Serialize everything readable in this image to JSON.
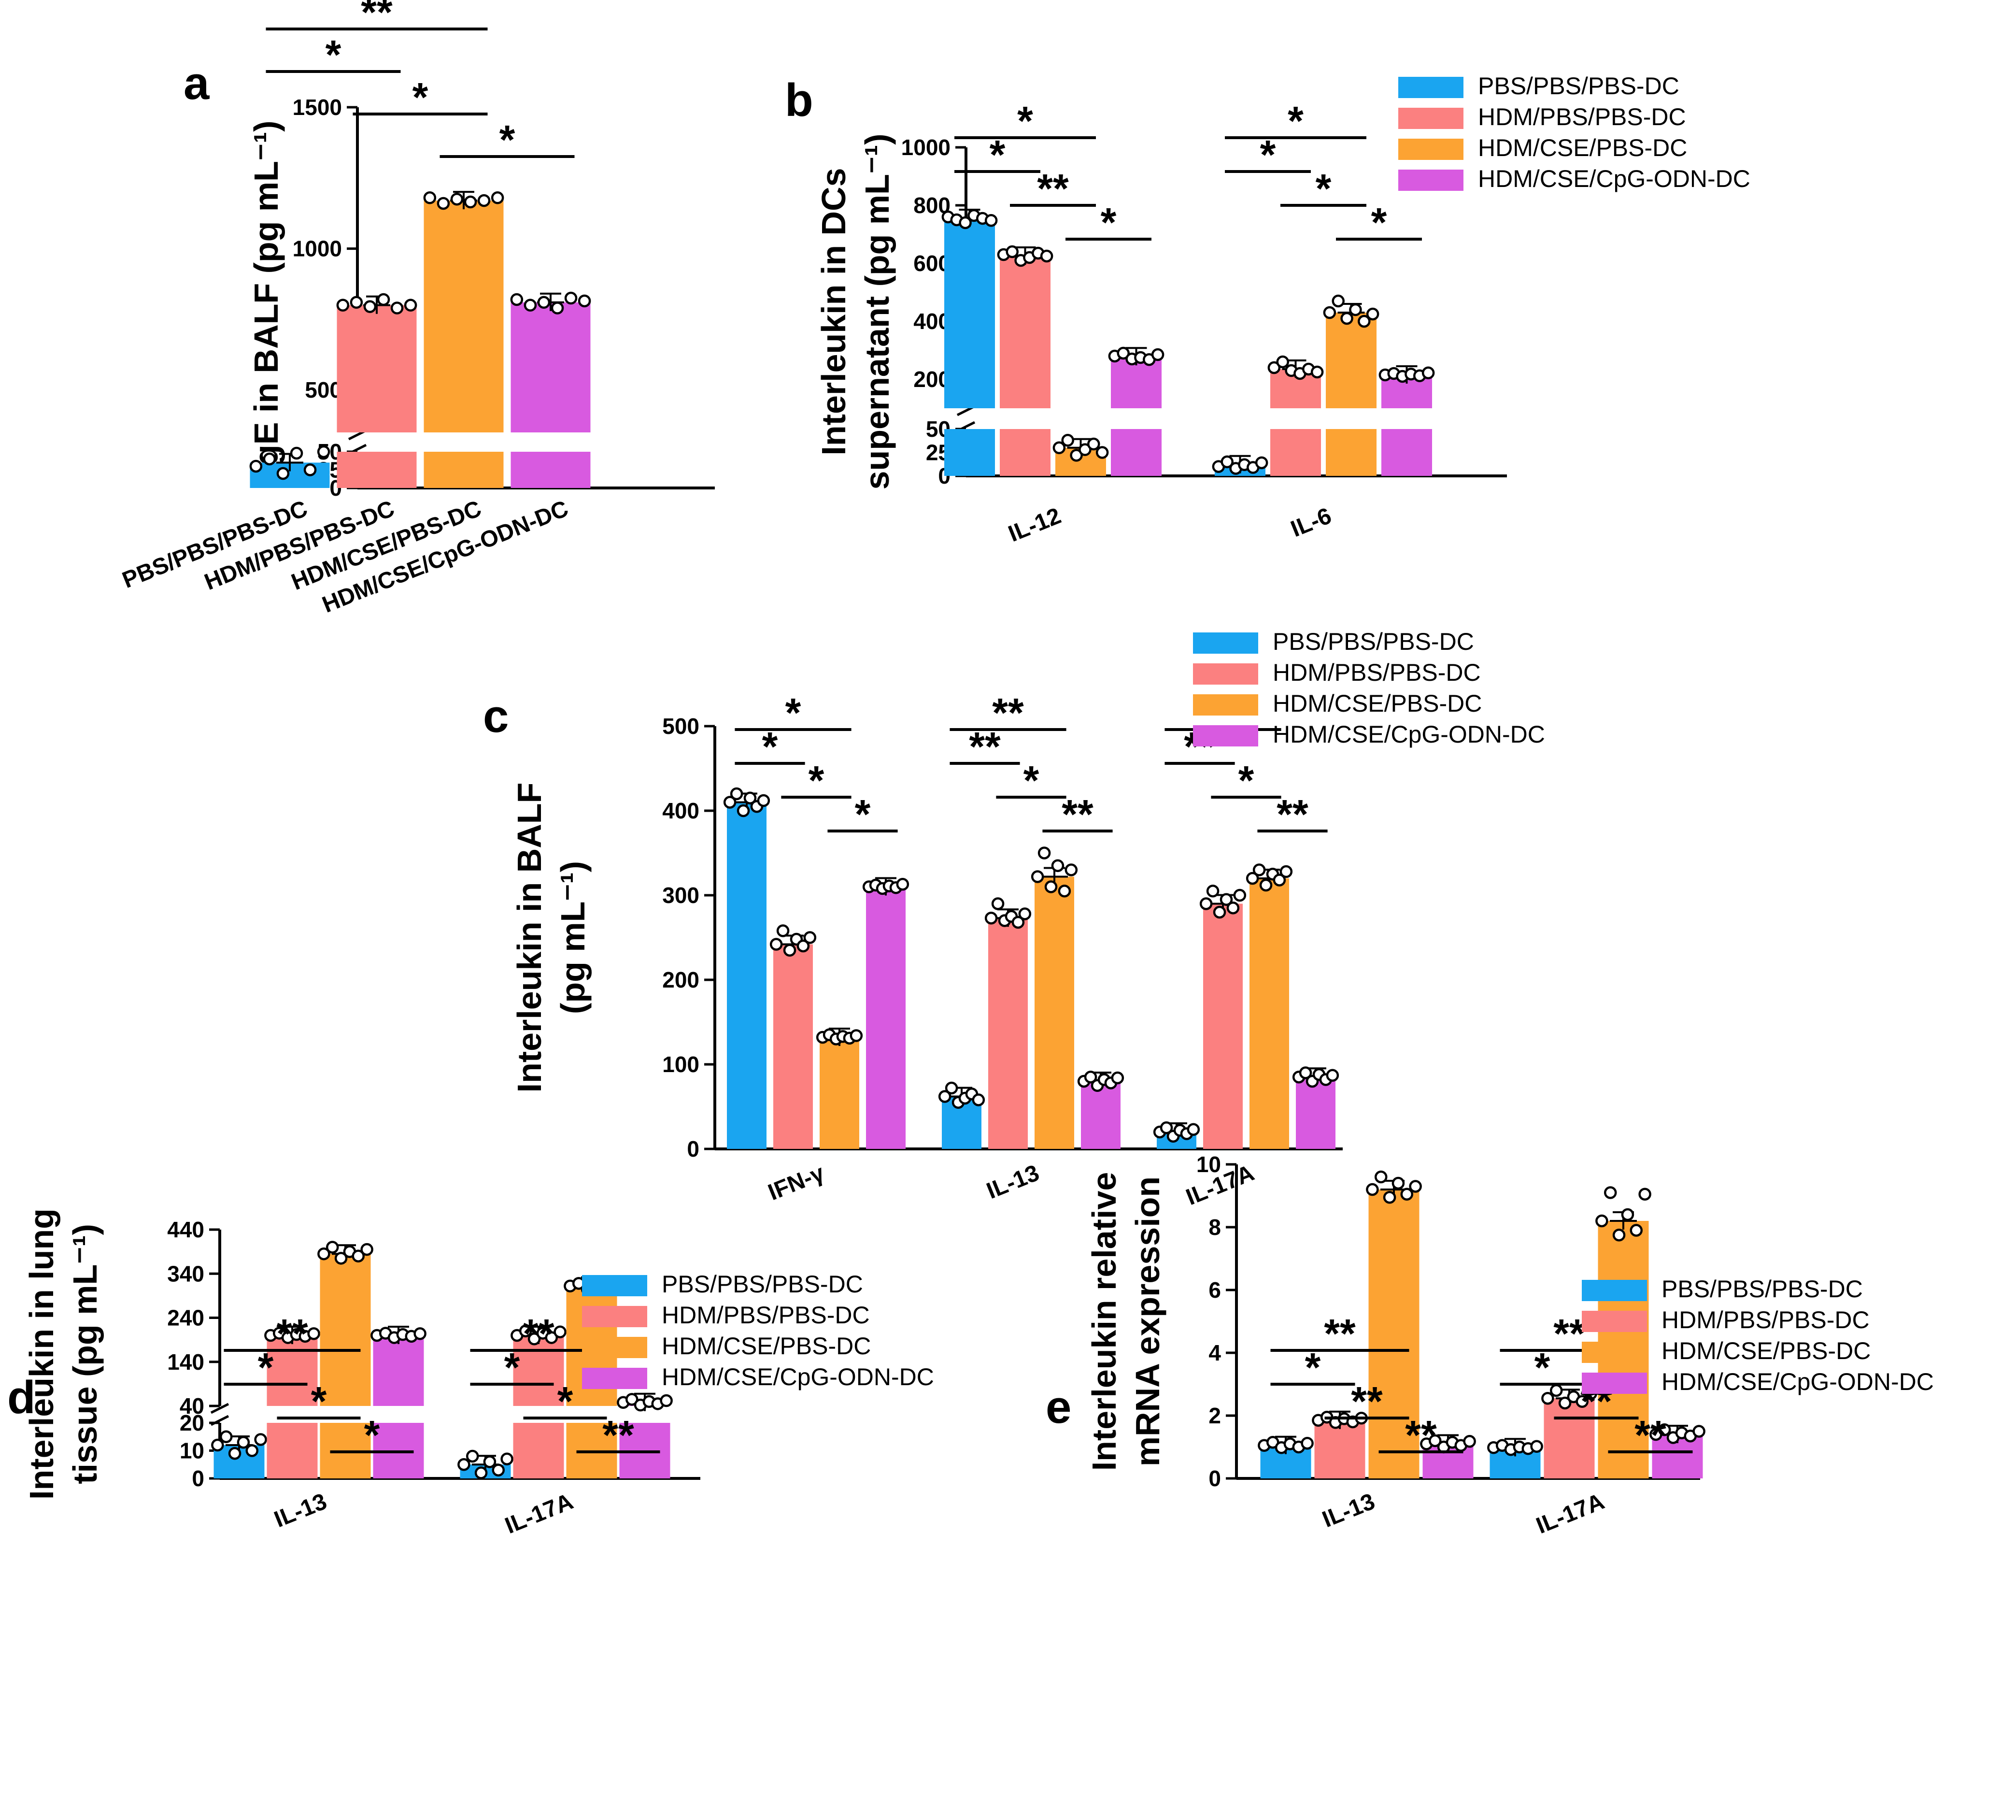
{
  "colors": {
    "PBS/PBS/PBS-DC": "#1aa5f0",
    "HDM/PBS/PBS-DC": "#fb8080",
    "HDM/CSE/PBS-DC": "#fca333",
    "HDM/CSE/CpG-ODN-DC": "#d85ae0"
  },
  "chart_data": [
    {
      "panel": "a",
      "type": "bar",
      "ylabel": "IgE in BALF (pg mL⁻¹)",
      "categories": [
        "PBS/PBS/PBS-DC",
        "HDM/PBS/PBS-DC",
        "HDM/CSE/PBS-DC",
        "HDM/CSE/CpG-ODN-DC"
      ],
      "values": [
        35,
        800,
        1170,
        810
      ],
      "points": [
        [
          30,
          40,
          20,
          48,
          25,
          52
        ],
        [
          800,
          810,
          795,
          820,
          790,
          800
        ],
        [
          1180,
          1160,
          1175,
          1165,
          1170,
          1180
        ],
        [
          820,
          800,
          810,
          790,
          825,
          815
        ]
      ],
      "y_axis_segments": [
        {
          "range": [
            0,
            50
          ],
          "ticks": [
            "0",
            "25",
            "50"
          ]
        },
        {
          "range": [
            350,
            1500
          ],
          "ticks": [
            "500",
            "1000",
            "1500"
          ]
        }
      ],
      "significance": [
        {
          "from": 0,
          "to": 2,
          "label": "**"
        },
        {
          "from": 0,
          "to": 1,
          "label": "*"
        },
        {
          "from": 1,
          "to": 2,
          "label": "*"
        },
        {
          "from": 2,
          "to": 3,
          "label": "*"
        }
      ]
    },
    {
      "panel": "b",
      "type": "bar",
      "ylabel": "Interleukin in DCs",
      "ylabel2": "supernatant (pg mL⁻¹)",
      "categories": [
        "IL-12",
        "IL-6"
      ],
      "series": [
        {
          "name": "PBS/PBS/PBS-DC",
          "values": [
            755,
            12
          ],
          "points": [
            [
              760,
              750,
              740,
              765,
              755,
              748
            ],
            [
              10,
              15,
              8,
              12,
              9,
              14
            ]
          ]
        },
        {
          "name": "HDM/PBS/PBS-DC",
          "values": [
            625,
            235
          ],
          "points": [
            [
              630,
              640,
              610,
              620,
              635,
              625
            ],
            [
              240,
              260,
              230,
              220,
              235,
              225
            ]
          ]
        },
        {
          "name": "HDM/CSE/PBS-DC",
          "values": [
            30,
            430
          ],
          "points": [
            [
              30,
              38,
              22,
              28,
              34,
              25
            ],
            [
              430,
              470,
              410,
              440,
              400,
              425
            ]
          ]
        },
        {
          "name": "HDM/CSE/CpG-ODN-DC",
          "values": [
            278,
            215
          ],
          "points": [
            [
              280,
              290,
              270,
              275,
              268,
              285
            ],
            [
              215,
              220,
              210,
              218,
              212,
              222
            ]
          ]
        }
      ],
      "y_axis_segments": [
        {
          "range": [
            0,
            50
          ],
          "ticks": [
            "0",
            "25",
            "50"
          ]
        },
        {
          "range": [
            100,
            1000
          ],
          "ticks": [
            "200",
            "400",
            "600",
            "800",
            "1000"
          ]
        }
      ],
      "legend_position": "top-right",
      "significance": [
        {
          "group": 0,
          "from": 0,
          "to": 2,
          "label": "*"
        },
        {
          "group": 0,
          "from": 0,
          "to": 1,
          "label": "*"
        },
        {
          "group": 0,
          "from": 1,
          "to": 2,
          "label": "**"
        },
        {
          "group": 0,
          "from": 2,
          "to": 3,
          "label": "*"
        },
        {
          "group": 1,
          "from": 0,
          "to": 2,
          "label": "*"
        },
        {
          "group": 1,
          "from": 0,
          "to": 1,
          "label": "*"
        },
        {
          "group": 1,
          "from": 1,
          "to": 2,
          "label": "*"
        },
        {
          "group": 1,
          "from": 2,
          "to": 3,
          "label": "*"
        }
      ]
    },
    {
      "panel": "c",
      "type": "bar",
      "ylabel": "Interleukin in BALF",
      "ylabel2": "(pg mL⁻¹)",
      "categories": [
        "IFN-γ",
        "IL-13",
        "IL-17A"
      ],
      "series": [
        {
          "name": "PBS/PBS/PBS-DC",
          "values": [
            410,
            62,
            20
          ],
          "points": [
            [
              410,
              420,
              400,
              415,
              405,
              412
            ],
            [
              62,
              72,
              55,
              60,
              65,
              58
            ],
            [
              20,
              25,
              15,
              22,
              18,
              23
            ]
          ]
        },
        {
          "name": "HDM/PBS/PBS-DC",
          "values": [
            242,
            273,
            290
          ],
          "points": [
            [
              242,
              258,
              235,
              248,
              240,
              250
            ],
            [
              273,
              290,
              270,
              275,
              268,
              278
            ],
            [
              290,
              305,
              280,
              295,
              285,
              300
            ]
          ]
        },
        {
          "name": "HDM/CSE/PBS-DC",
          "values": [
            132,
            322,
            320
          ],
          "points": [
            [
              132,
              135,
              130,
              133,
              131,
              134
            ],
            [
              322,
              350,
              310,
              335,
              305,
              330
            ],
            [
              320,
              330,
              312,
              325,
              318,
              328
            ]
          ]
        },
        {
          "name": "HDM/CSE/CpG-ODN-DC",
          "values": [
            310,
            80,
            85
          ],
          "points": [
            [
              310,
              312,
              308,
              311,
              309,
              313
            ],
            [
              80,
              85,
              75,
              82,
              78,
              84
            ],
            [
              85,
              90,
              80,
              88,
              82,
              87
            ]
          ]
        }
      ],
      "ylim": [
        0,
        500
      ],
      "yticks": [
        0,
        100,
        200,
        300,
        400,
        500
      ],
      "legend_position": "top-right",
      "significance": [
        {
          "group": 0,
          "from": 0,
          "to": 2,
          "label": "*"
        },
        {
          "group": 0,
          "from": 0,
          "to": 1,
          "label": "*"
        },
        {
          "group": 0,
          "from": 1,
          "to": 2,
          "label": "*"
        },
        {
          "group": 0,
          "from": 2,
          "to": 3,
          "label": "*"
        },
        {
          "group": 1,
          "from": 0,
          "to": 2,
          "label": "**"
        },
        {
          "group": 1,
          "from": 0,
          "to": 1,
          "label": "**"
        },
        {
          "group": 1,
          "from": 1,
          "to": 2,
          "label": "*"
        },
        {
          "group": 1,
          "from": 2,
          "to": 3,
          "label": "**"
        },
        {
          "group": 2,
          "from": 0,
          "to": 2,
          "label": "**"
        },
        {
          "group": 2,
          "from": 0,
          "to": 1,
          "label": "**"
        },
        {
          "group": 2,
          "from": 1,
          "to": 2,
          "label": "*"
        },
        {
          "group": 2,
          "from": 2,
          "to": 3,
          "label": "**"
        }
      ]
    },
    {
      "panel": "d",
      "type": "bar",
      "ylabel": "Interleukin in lung",
      "ylabel2": "tissue (pg mL⁻¹)",
      "categories": [
        "IL-13",
        "IL-17A"
      ],
      "series": [
        {
          "name": "PBS/PBS/PBS-DC",
          "values": [
            12,
            5
          ],
          "points": [
            [
              12,
              15,
              9,
              13,
              10,
              14
            ],
            [
              5,
              8,
              2,
              6,
              3,
              7
            ]
          ]
        },
        {
          "name": "HDM/PBS/PBS-DC",
          "values": [
            200,
            200
          ],
          "points": [
            [
              200,
              205,
              195,
              202,
              198,
              204
            ],
            [
              200,
              210,
              192,
              205,
              195,
              208
            ]
          ]
        },
        {
          "name": "HDM/CSE/PBS-DC",
          "values": [
            385,
            312
          ],
          "points": [
            [
              385,
              400,
              375,
              390,
              380,
              395
            ],
            [
              312,
              318,
              305,
              315,
              310,
              316
            ]
          ]
        },
        {
          "name": "HDM/CSE/CpG-ODN-DC",
          "values": [
            200,
            48
          ],
          "points": [
            [
              200,
              205,
              195,
              202,
              198,
              204
            ],
            [
              48,
              55,
              42,
              50,
              45,
              52
            ]
          ]
        }
      ],
      "y_axis_segments": [
        {
          "range": [
            0,
            20
          ],
          "ticks": [
            "0",
            "10",
            "20"
          ]
        },
        {
          "range": [
            40,
            440
          ],
          "ticks": [
            "40",
            "140",
            "240",
            "340",
            "440"
          ]
        }
      ],
      "legend_position": "top-right",
      "significance": [
        {
          "group": 0,
          "from": 0,
          "to": 2,
          "label": "**"
        },
        {
          "group": 0,
          "from": 0,
          "to": 1,
          "label": "*"
        },
        {
          "group": 0,
          "from": 1,
          "to": 2,
          "label": "*"
        },
        {
          "group": 0,
          "from": 2,
          "to": 3,
          "label": "*"
        },
        {
          "group": 1,
          "from": 0,
          "to": 2,
          "label": "**"
        },
        {
          "group": 1,
          "from": 0,
          "to": 1,
          "label": "*"
        },
        {
          "group": 1,
          "from": 1,
          "to": 2,
          "label": "*"
        },
        {
          "group": 1,
          "from": 2,
          "to": 3,
          "label": "**"
        }
      ]
    },
    {
      "panel": "e",
      "type": "bar",
      "ylabel": "Interleukin relative",
      "ylabel2": "mRNA expression",
      "categories": [
        "IL-13",
        "IL-17A"
      ],
      "series": [
        {
          "name": "PBS/PBS/PBS-DC",
          "values": [
            1.05,
            0.98
          ],
          "points": [
            [
              1.05,
              1.15,
              0.98,
              1.1,
              1.0,
              1.12
            ],
            [
              0.98,
              1.05,
              0.92,
              1.0,
              0.95,
              1.02
            ]
          ]
        },
        {
          "name": "HDM/PBS/PBS-DC",
          "values": [
            1.85,
            2.55
          ],
          "points": [
            [
              1.85,
              1.95,
              1.78,
              1.9,
              1.8,
              1.92
            ],
            [
              2.55,
              2.8,
              2.4,
              2.6,
              2.45,
              2.7
            ]
          ]
        },
        {
          "name": "HDM/CSE/PBS-DC",
          "values": [
            9.2,
            8.2
          ],
          "points": [
            [
              9.2,
              9.6,
              8.95,
              9.4,
              9.05,
              9.3
            ],
            [
              8.2,
              9.1,
              7.75,
              8.4,
              7.9,
              9.05
            ]
          ]
        },
        {
          "name": "HDM/CSE/CpG-ODN-DC",
          "values": [
            1.1,
            1.4
          ],
          "points": [
            [
              1.1,
              1.2,
              1.0,
              1.15,
              1.05,
              1.18
            ],
            [
              1.4,
              1.55,
              1.3,
              1.45,
              1.35,
              1.5
            ]
          ]
        }
      ],
      "ylim": [
        0,
        10
      ],
      "yticks": [
        0,
        2,
        4,
        6,
        8,
        10
      ],
      "legend_position": "top-right",
      "significance": [
        {
          "group": 0,
          "from": 0,
          "to": 2,
          "label": "**"
        },
        {
          "group": 0,
          "from": 0,
          "to": 1,
          "label": "*"
        },
        {
          "group": 0,
          "from": 1,
          "to": 2,
          "label": "**"
        },
        {
          "group": 0,
          "from": 2,
          "to": 3,
          "label": "**"
        },
        {
          "group": 1,
          "from": 0,
          "to": 2,
          "label": "**"
        },
        {
          "group": 1,
          "from": 0,
          "to": 1,
          "label": "*"
        },
        {
          "group": 1,
          "from": 1,
          "to": 2,
          "label": "**"
        },
        {
          "group": 1,
          "from": 2,
          "to": 3,
          "label": "**"
        }
      ]
    }
  ]
}
